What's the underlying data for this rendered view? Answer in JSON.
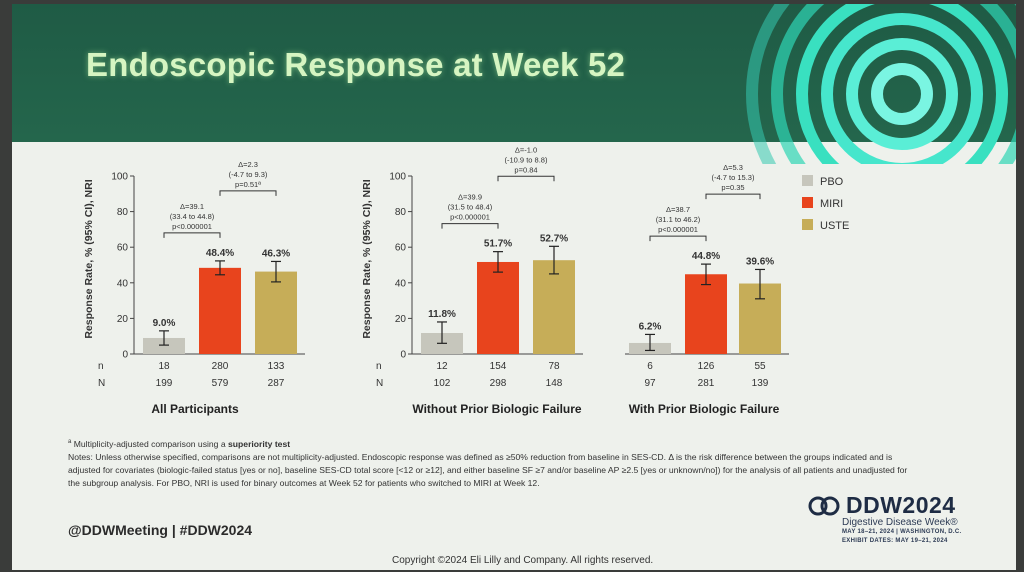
{
  "title": "Endoscopic Response at Week 52",
  "colors": {
    "PBO": "#c6c6bc",
    "MIRI": "#e8441d",
    "USTE": "#c6ad58",
    "header": "#22614a"
  },
  "legend": [
    "PBO",
    "MIRI",
    "USTE"
  ],
  "row_labels": {
    "n": "n",
    "N": "N"
  },
  "chart_data": [
    {
      "type": "bar",
      "title": "All Participants",
      "ylabel": "Response Rate, % (95% CI), NRI",
      "ylim": [
        0,
        100
      ],
      "yticks": [
        "0",
        "20",
        "40",
        "60",
        "80",
        "100"
      ],
      "categories": [
        "PBO",
        "MIRI",
        "USTE"
      ],
      "values": [
        9.0,
        48.4,
        46.3
      ],
      "value_labels": [
        "9.0%",
        "48.4%",
        "46.3%"
      ],
      "ci": [
        [
          5,
          13
        ],
        [
          44.5,
          52.3
        ],
        [
          40.5,
          52
        ]
      ],
      "n": [
        "18",
        "280",
        "133"
      ],
      "N": [
        "199",
        "579",
        "287"
      ],
      "comparisons": [
        {
          "from": 0,
          "to": 1,
          "lines": [
            "Δ=39.1",
            "(33.4 to 44.8)",
            "p<0.000001"
          ]
        },
        {
          "from": 1,
          "to": 2,
          "lines": [
            "Δ=2.3",
            "(-4.7 to 9.3)",
            "p=0.51ª"
          ]
        }
      ]
    },
    {
      "type": "bar",
      "title": "Without Prior Biologic Failure",
      "ylabel": "Response Rate, % (95% CI), NRI",
      "ylim": [
        0,
        100
      ],
      "yticks": [
        "0",
        "20",
        "40",
        "60",
        "80",
        "100"
      ],
      "categories": [
        "PBO",
        "MIRI",
        "USTE"
      ],
      "values": [
        11.8,
        51.7,
        52.7
      ],
      "value_labels": [
        "11.8%",
        "51.7%",
        "52.7%"
      ],
      "ci": [
        [
          6,
          18
        ],
        [
          46,
          57.5
        ],
        [
          45,
          60.5
        ]
      ],
      "n": [
        "12",
        "154",
        "78"
      ],
      "N": [
        "102",
        "298",
        "148"
      ],
      "comparisons": [
        {
          "from": 0,
          "to": 1,
          "lines": [
            "Δ=39.9",
            "(31.5 to 48.4)",
            "p<0.000001"
          ]
        },
        {
          "from": 1,
          "to": 2,
          "lines": [
            "Δ=-1.0",
            "(-10.9 to 8.8)",
            "p=0.84"
          ]
        }
      ]
    },
    {
      "type": "bar",
      "title": "With Prior Biologic Failure",
      "ylabel": "",
      "ylim": [
        0,
        100
      ],
      "yticks": [],
      "categories": [
        "PBO",
        "MIRI",
        "USTE"
      ],
      "values": [
        6.2,
        44.8,
        39.6
      ],
      "value_labels": [
        "6.2%",
        "44.8%",
        "39.6%"
      ],
      "ci": [
        [
          2,
          11
        ],
        [
          39,
          50.5
        ],
        [
          31,
          47.5
        ]
      ],
      "n": [
        "6",
        "126",
        "55"
      ],
      "N": [
        "97",
        "281",
        "139"
      ],
      "comparisons": [
        {
          "from": 0,
          "to": 1,
          "lines": [
            "Δ=38.7",
            "(31.1 to 46.2)",
            "p<0.000001"
          ]
        },
        {
          "from": 1,
          "to": 2,
          "lines": [
            "Δ=5.3",
            "(-4.7 to 15.3)",
            "p=0.35"
          ]
        }
      ]
    }
  ],
  "footnote_a_pre": "Multiplicity-adjusted comparison using a ",
  "footnote_a_bold": "superiority test",
  "footnote_notes": "Notes: Unless otherwise specified, comparisons are not multiplicity-adjusted. Endoscopic response was defined as ≥50% reduction from baseline in SES-CD. Δ is the risk difference between the groups indicated and is adjusted for covariates (biologic-failed status [yes or no], baseline SES-CD total score [<12 or ≥12], and either baseline SF ≥7 and/or baseline AP ≥2.5 [yes or unknown/no]) for the analysis of all patients and unadjusted for the subgroup analysis. For PBO, NRI is used for binary outcomes at Week 52 for patients who switched to MIRI at Week 12.",
  "handle": "@DDWMeeting |  #DDW2024",
  "copyright": "Copyright ©2024 Eli Lilly and Company. All rights reserved.",
  "ddw": {
    "name": "DDW2024",
    "subtitle": "Digestive Disease Week®",
    "dates1": "MAY 18–21, 2024 | WASHINGTON, D.C.",
    "dates2": "EXHIBIT DATES: MAY 19–21, 2024"
  }
}
